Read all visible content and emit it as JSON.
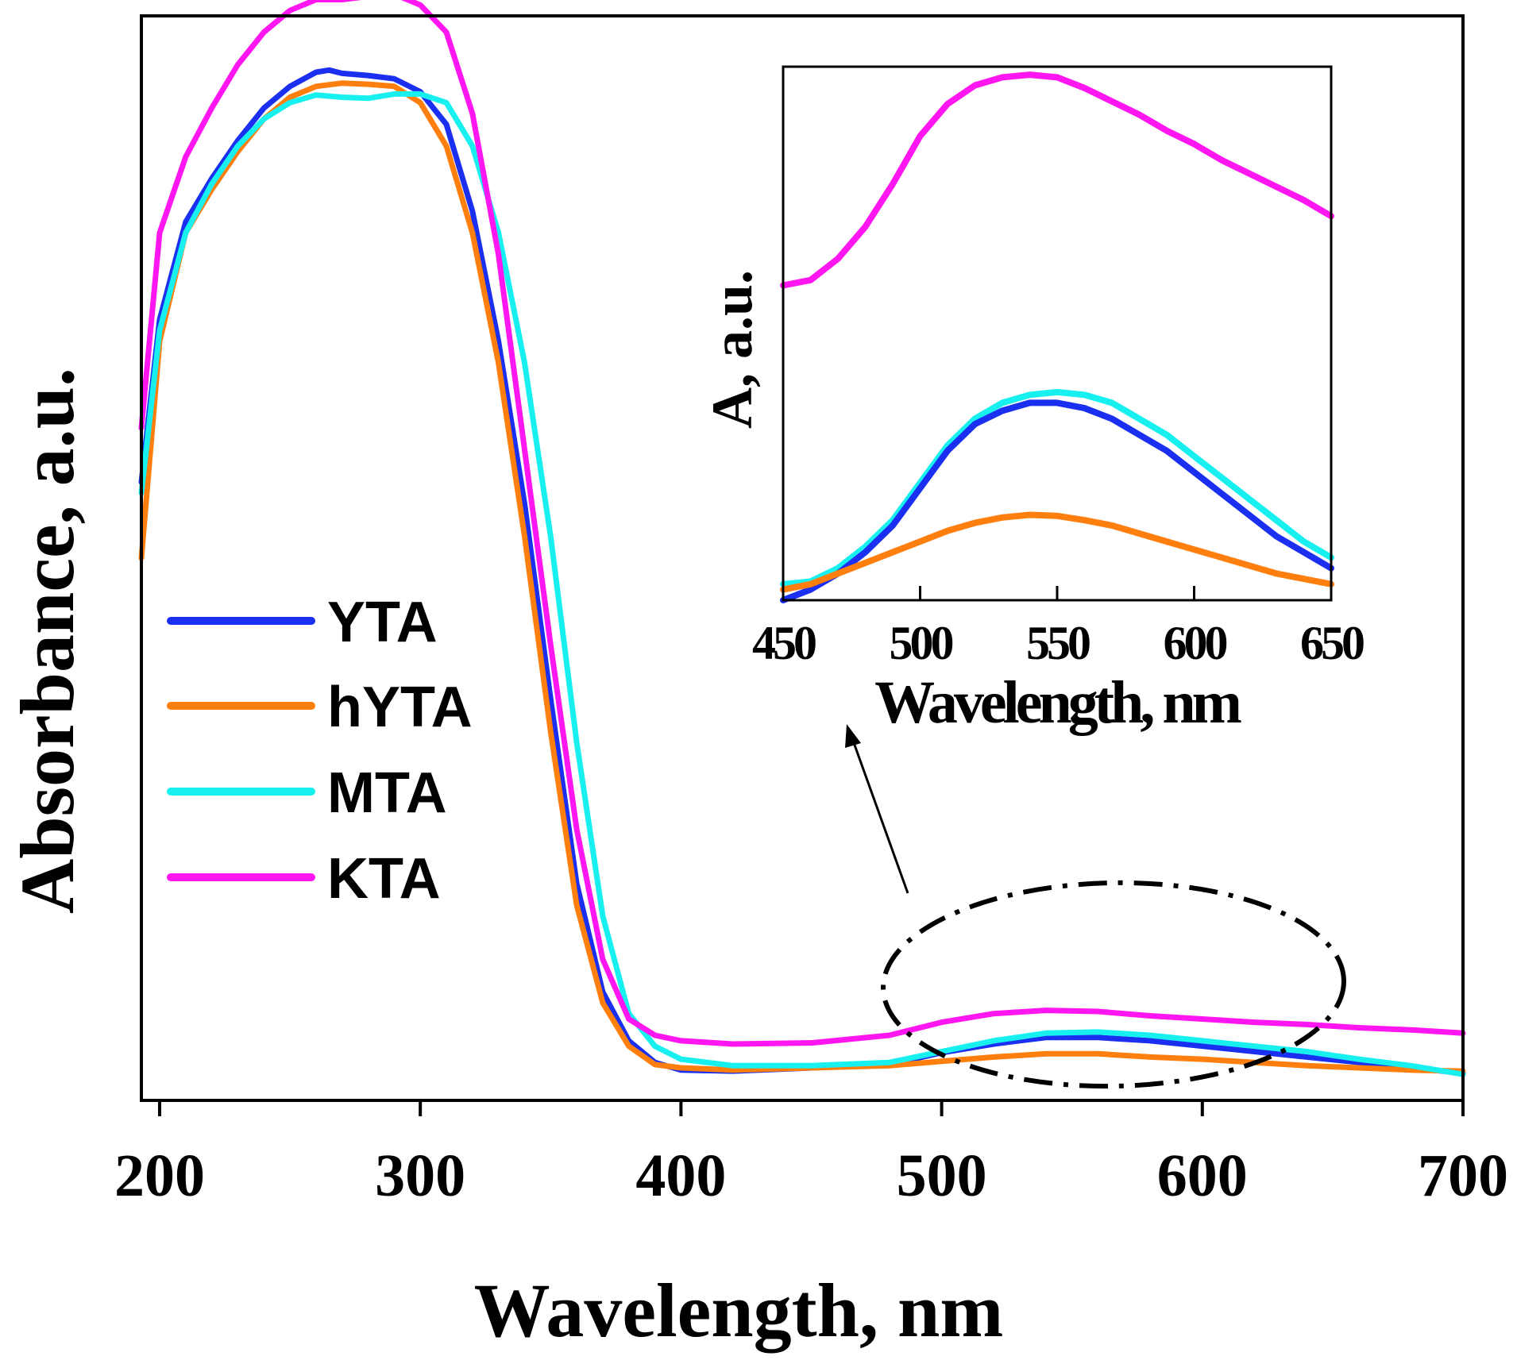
{
  "chart_data": [
    {
      "id": "main",
      "type": "line",
      "title": "",
      "xlabel": "Wavelength, nm",
      "ylabel": "Absorbance, a.u.",
      "xlim": [
        193,
        700
      ],
      "ylim": [
        0,
        1
      ],
      "xticks": [
        200,
        300,
        400,
        500,
        600,
        700
      ],
      "yticks_shown": false,
      "grid": false,
      "legend": {
        "position": "middle-left"
      },
      "series": [
        {
          "name": "YTA",
          "color": "#1a2ff0",
          "x": [
            193,
            200,
            210,
            220,
            230,
            240,
            250,
            260,
            265,
            270,
            280,
            290,
            300,
            310,
            320,
            330,
            340,
            350,
            360,
            370,
            380,
            390,
            400,
            420,
            450,
            480,
            500,
            520,
            540,
            560,
            580,
            600,
            620,
            640,
            660,
            680,
            700
          ],
          "y": [
            0.57,
            0.72,
            0.81,
            0.85,
            0.885,
            0.915,
            0.935,
            0.948,
            0.95,
            0.947,
            0.945,
            0.942,
            0.93,
            0.9,
            0.82,
            0.7,
            0.55,
            0.37,
            0.2,
            0.1,
            0.055,
            0.035,
            0.028,
            0.027,
            0.03,
            0.033,
            0.044,
            0.052,
            0.058,
            0.058,
            0.055,
            0.05,
            0.045,
            0.04,
            0.035,
            0.03,
            0.025
          ]
        },
        {
          "name": "hYTA",
          "color": "#ff7f0e",
          "x": [
            193,
            200,
            210,
            220,
            230,
            240,
            250,
            260,
            270,
            280,
            290,
            300,
            310,
            320,
            330,
            340,
            350,
            360,
            370,
            380,
            390,
            400,
            420,
            450,
            480,
            500,
            520,
            540,
            560,
            580,
            600,
            620,
            640,
            660,
            680,
            700
          ],
          "y": [
            0.5,
            0.7,
            0.8,
            0.84,
            0.875,
            0.905,
            0.925,
            0.935,
            0.938,
            0.937,
            0.935,
            0.92,
            0.88,
            0.8,
            0.68,
            0.52,
            0.34,
            0.18,
            0.09,
            0.05,
            0.033,
            0.03,
            0.028,
            0.03,
            0.032,
            0.036,
            0.04,
            0.043,
            0.043,
            0.04,
            0.038,
            0.035,
            0.032,
            0.03,
            0.028,
            0.027
          ]
        },
        {
          "name": "MTA",
          "color": "#18f0f0",
          "x": [
            193,
            200,
            210,
            220,
            230,
            240,
            250,
            260,
            270,
            280,
            290,
            300,
            310,
            320,
            330,
            340,
            350,
            360,
            370,
            380,
            390,
            400,
            420,
            450,
            480,
            500,
            520,
            540,
            560,
            580,
            600,
            620,
            640,
            660,
            680,
            700
          ],
          "y": [
            0.56,
            0.71,
            0.8,
            0.845,
            0.88,
            0.905,
            0.92,
            0.927,
            0.925,
            0.924,
            0.928,
            0.928,
            0.92,
            0.88,
            0.8,
            0.68,
            0.52,
            0.33,
            0.17,
            0.08,
            0.05,
            0.038,
            0.032,
            0.032,
            0.035,
            0.045,
            0.055,
            0.062,
            0.063,
            0.06,
            0.055,
            0.05,
            0.045,
            0.038,
            0.032,
            0.024
          ]
        },
        {
          "name": "KTA",
          "color": "#ff16f0",
          "x": [
            193,
            200,
            210,
            220,
            230,
            240,
            250,
            260,
            270,
            280,
            290,
            300,
            310,
            320,
            330,
            340,
            350,
            360,
            370,
            380,
            390,
            400,
            420,
            450,
            480,
            500,
            520,
            540,
            560,
            580,
            600,
            620,
            640,
            660,
            680,
            700
          ],
          "y": [
            0.62,
            0.8,
            0.87,
            0.915,
            0.955,
            0.985,
            1.005,
            1.015,
            1.015,
            1.018,
            1.02,
            1.01,
            0.985,
            0.91,
            0.78,
            0.6,
            0.42,
            0.25,
            0.13,
            0.075,
            0.06,
            0.055,
            0.052,
            0.053,
            0.06,
            0.072,
            0.08,
            0.083,
            0.082,
            0.078,
            0.075,
            0.072,
            0.07,
            0.067,
            0.065,
            0.062
          ]
        }
      ],
      "annotations": [
        {
          "type": "ellipse-dashdot",
          "description": "highlighted region 470–660 nm"
        },
        {
          "type": "arrow",
          "description": "arrow pointing from highlighted region to inset"
        }
      ]
    },
    {
      "id": "inset",
      "type": "line",
      "title": "",
      "xlabel": "Wavelength, nm",
      "ylabel": "A, a.u.",
      "xlim": [
        450,
        650
      ],
      "ylim": [
        0,
        1
      ],
      "xticks": [
        450,
        500,
        550,
        600,
        650
      ],
      "yticks_shown": false,
      "grid": false,
      "series": [
        {
          "name": "KTA",
          "color": "#ff16f0",
          "x": [
            450,
            460,
            470,
            480,
            490,
            500,
            510,
            520,
            530,
            540,
            550,
            560,
            570,
            580,
            590,
            600,
            610,
            620,
            630,
            640,
            650
          ],
          "y": [
            0.59,
            0.6,
            0.64,
            0.7,
            0.78,
            0.87,
            0.93,
            0.965,
            0.98,
            0.985,
            0.98,
            0.96,
            0.935,
            0.91,
            0.88,
            0.855,
            0.825,
            0.8,
            0.775,
            0.75,
            0.72
          ]
        },
        {
          "name": "MTA",
          "color": "#18f0f0",
          "x": [
            450,
            460,
            470,
            480,
            490,
            500,
            510,
            520,
            530,
            540,
            550,
            560,
            570,
            580,
            590,
            600,
            610,
            620,
            630,
            640,
            650
          ],
          "y": [
            0.03,
            0.035,
            0.06,
            0.1,
            0.15,
            0.22,
            0.29,
            0.34,
            0.37,
            0.385,
            0.39,
            0.385,
            0.37,
            0.34,
            0.31,
            0.27,
            0.23,
            0.19,
            0.15,
            0.11,
            0.08
          ]
        },
        {
          "name": "YTA",
          "color": "#1a2ff0",
          "x": [
            450,
            460,
            470,
            480,
            490,
            500,
            510,
            520,
            530,
            540,
            550,
            560,
            570,
            580,
            590,
            600,
            610,
            620,
            630,
            640,
            650
          ],
          "y": [
            0.0,
            0.02,
            0.05,
            0.09,
            0.14,
            0.21,
            0.28,
            0.33,
            0.355,
            0.37,
            0.37,
            0.36,
            0.34,
            0.31,
            0.28,
            0.24,
            0.2,
            0.16,
            0.12,
            0.09,
            0.06
          ]
        },
        {
          "name": "hYTA",
          "color": "#ff7f0e",
          "x": [
            450,
            460,
            470,
            480,
            490,
            500,
            510,
            520,
            530,
            540,
            550,
            560,
            570,
            580,
            590,
            600,
            610,
            620,
            630,
            640,
            650
          ],
          "y": [
            0.02,
            0.03,
            0.05,
            0.07,
            0.09,
            0.11,
            0.13,
            0.145,
            0.155,
            0.16,
            0.158,
            0.15,
            0.14,
            0.125,
            0.11,
            0.095,
            0.08,
            0.065,
            0.05,
            0.04,
            0.03
          ]
        }
      ]
    }
  ]
}
